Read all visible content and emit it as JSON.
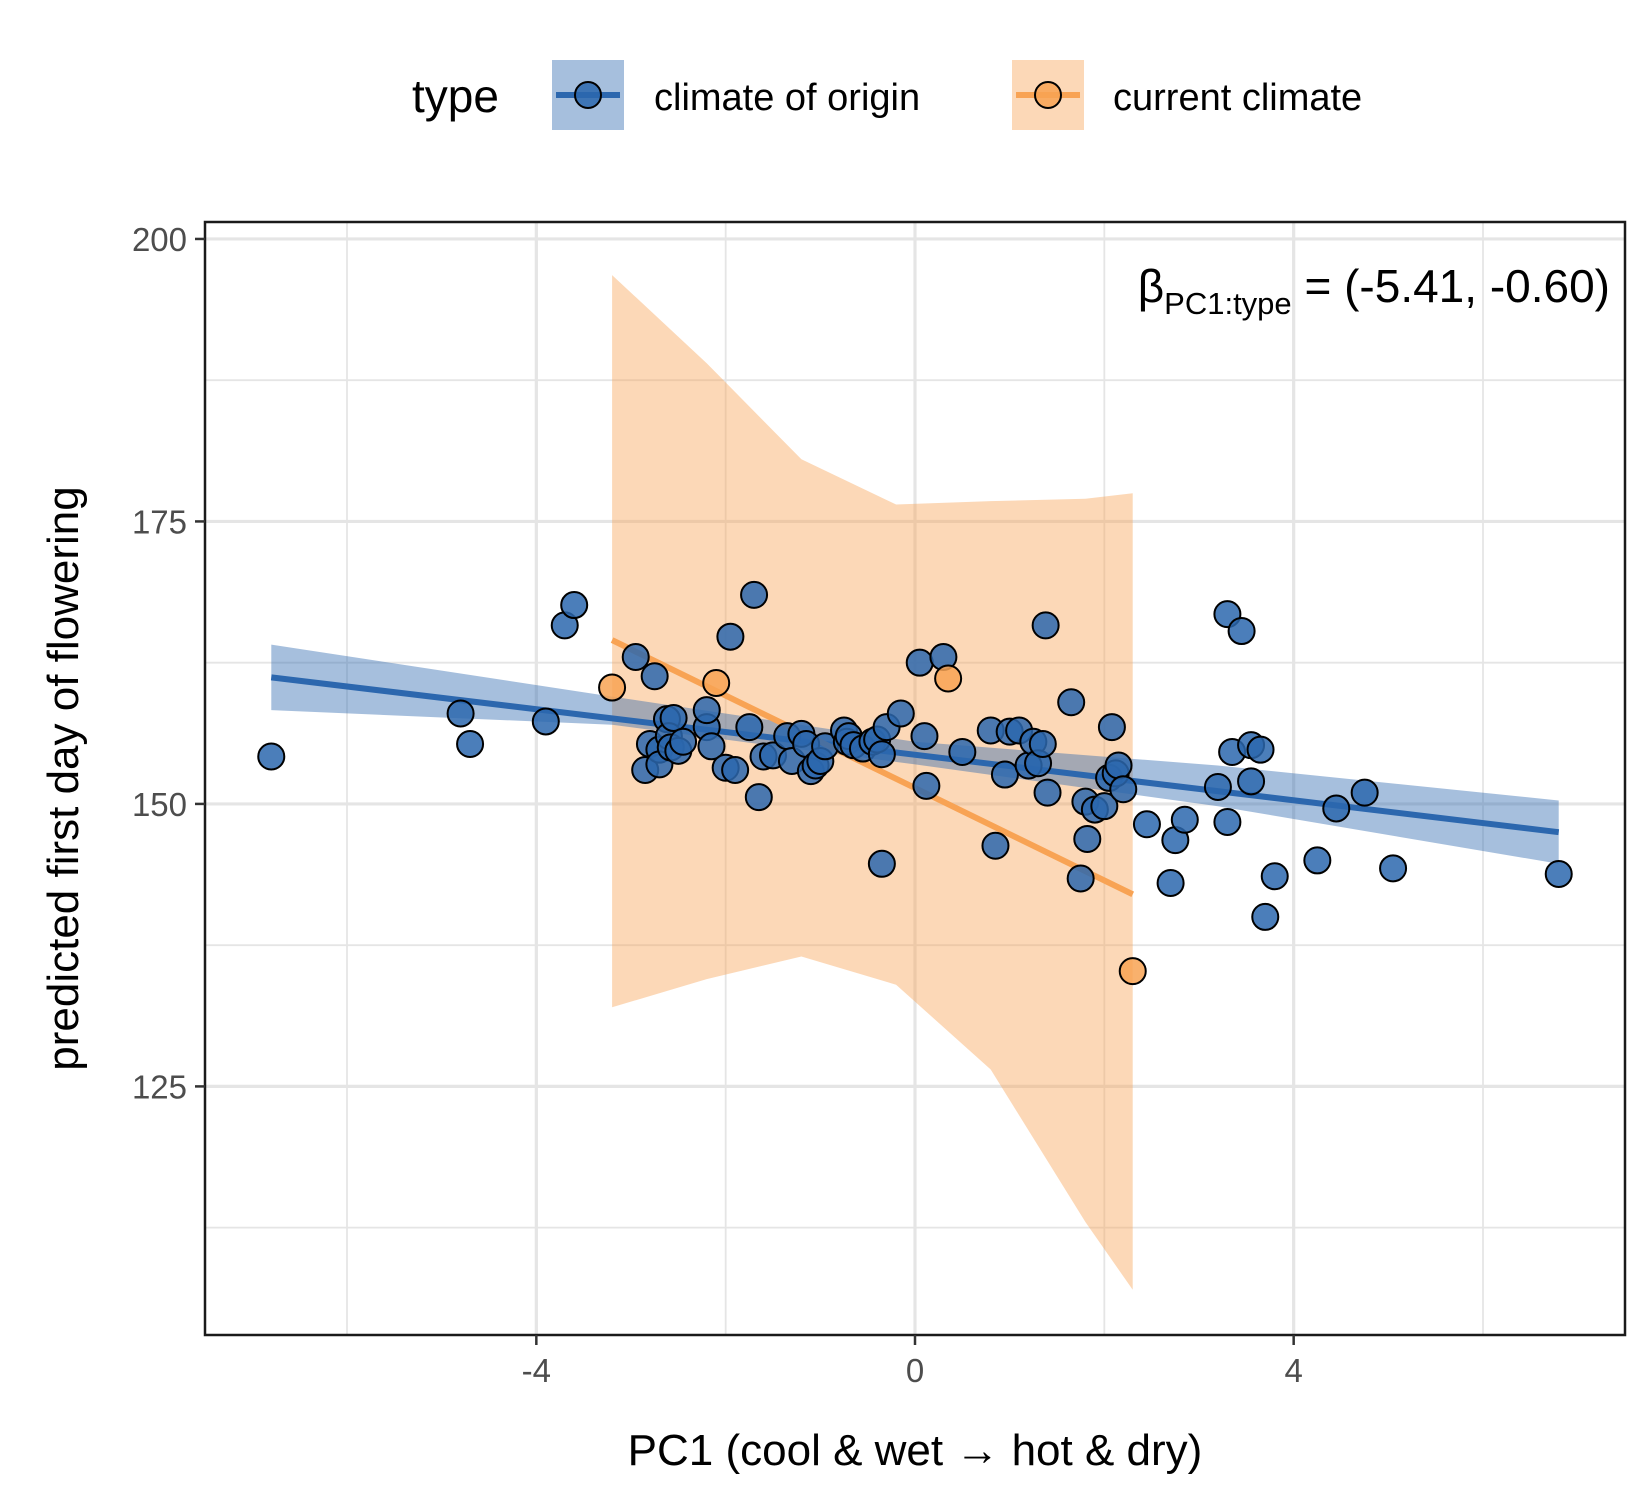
{
  "chart_data": {
    "type": "scatter",
    "xlabel": "PC1 (cool & wet → hot & dry)",
    "ylabel": "predicted first day of flowering",
    "xlim": [
      -7.5,
      7.5
    ],
    "ylim": [
      103,
      201.5
    ],
    "x_ticks": [
      -4,
      0,
      4
    ],
    "x_tick_labels": [
      "-4",
      "0",
      "4"
    ],
    "y_ticks": [
      125,
      150,
      175,
      200
    ],
    "y_tick_labels": [
      "125",
      "150",
      "175",
      "200"
    ],
    "grid": true,
    "legend": {
      "title": "type",
      "position": "top",
      "entries": [
        "climate of origin",
        "current climate"
      ]
    },
    "annotation": {
      "symbol": "β",
      "subscript": "PC1:type",
      "text": " = (-5.41, -0.60)"
    },
    "colors": {
      "climate of origin": "#2c67ae",
      "climate of origin band": "#a9c3de",
      "current climate": "#f8a354",
      "current climate band": "#fbd6b5",
      "grid": "#e5e5e5"
    },
    "series": [
      {
        "name": "climate of origin",
        "points": [
          [
            -6.8,
            154.2
          ],
          [
            -4.8,
            158.0
          ],
          [
            -4.7,
            155.3
          ],
          [
            -3.9,
            157.3
          ],
          [
            -3.7,
            165.8
          ],
          [
            -3.6,
            167.6
          ],
          [
            -2.95,
            163.0
          ],
          [
            -2.85,
            153.0
          ],
          [
            -2.8,
            155.3
          ],
          [
            -2.75,
            161.3
          ],
          [
            -2.7,
            154.8
          ],
          [
            -2.7,
            153.5
          ],
          [
            -2.62,
            157.5
          ],
          [
            -2.6,
            156.0
          ],
          [
            -2.58,
            155.0
          ],
          [
            -2.55,
            157.6
          ],
          [
            -2.5,
            154.7
          ],
          [
            -2.45,
            155.5
          ],
          [
            -2.2,
            156.8
          ],
          [
            -2.2,
            158.3
          ],
          [
            -2.15,
            155.1
          ],
          [
            -2.0,
            153.2
          ],
          [
            -1.95,
            164.8
          ],
          [
            -1.9,
            153.0
          ],
          [
            -1.75,
            156.8
          ],
          [
            -1.7,
            168.5
          ],
          [
            -1.65,
            150.6
          ],
          [
            -1.6,
            154.2
          ],
          [
            -1.5,
            154.3
          ],
          [
            -1.35,
            156.0
          ],
          [
            -1.3,
            153.8
          ],
          [
            -1.2,
            156.2
          ],
          [
            -1.15,
            155.3
          ],
          [
            -1.1,
            152.9
          ],
          [
            -1.05,
            153.4
          ],
          [
            -1.0,
            153.8
          ],
          [
            -0.95,
            155.1
          ],
          [
            -0.75,
            156.5
          ],
          [
            -0.72,
            155.5
          ],
          [
            -0.7,
            156.0
          ],
          [
            -0.65,
            155.2
          ],
          [
            -0.55,
            154.9
          ],
          [
            -0.45,
            155.5
          ],
          [
            -0.4,
            155.7
          ],
          [
            -0.35,
            144.7
          ],
          [
            -0.35,
            154.4
          ],
          [
            -0.3,
            156.8
          ],
          [
            -0.15,
            158.0
          ],
          [
            0.05,
            162.5
          ],
          [
            0.1,
            156.0
          ],
          [
            0.12,
            151.6
          ],
          [
            0.3,
            163.0
          ],
          [
            0.5,
            154.6
          ],
          [
            0.8,
            156.5
          ],
          [
            0.85,
            146.3
          ],
          [
            0.95,
            152.6
          ],
          [
            1.0,
            156.4
          ],
          [
            1.1,
            156.5
          ],
          [
            1.2,
            153.4
          ],
          [
            1.25,
            155.5
          ],
          [
            1.3,
            153.6
          ],
          [
            1.35,
            155.3
          ],
          [
            1.38,
            165.8
          ],
          [
            1.4,
            151.0
          ],
          [
            1.65,
            159.0
          ],
          [
            1.75,
            143.4
          ],
          [
            1.8,
            150.2
          ],
          [
            1.82,
            146.9
          ],
          [
            1.9,
            149.5
          ],
          [
            2.0,
            149.8
          ],
          [
            2.05,
            152.3
          ],
          [
            2.08,
            156.8
          ],
          [
            2.12,
            152.7
          ],
          [
            2.15,
            153.4
          ],
          [
            2.2,
            151.3
          ],
          [
            2.45,
            148.2
          ],
          [
            2.7,
            143.0
          ],
          [
            2.75,
            146.8
          ],
          [
            2.85,
            148.6
          ],
          [
            3.2,
            151.5
          ],
          [
            3.3,
            166.8
          ],
          [
            3.3,
            148.4
          ],
          [
            3.35,
            154.6
          ],
          [
            3.45,
            165.3
          ],
          [
            3.55,
            155.2
          ],
          [
            3.55,
            152.0
          ],
          [
            3.65,
            154.8
          ],
          [
            3.7,
            140.0
          ],
          [
            3.8,
            143.6
          ],
          [
            4.25,
            145.0
          ],
          [
            4.45,
            149.6
          ],
          [
            4.75,
            151.0
          ],
          [
            5.05,
            144.3
          ],
          [
            6.8,
            143.8
          ]
        ],
        "fit": {
          "x": [
            -6.8,
            6.8
          ],
          "y": [
            161.2,
            147.5
          ]
        },
        "band": {
          "x": [
            -6.8,
            -3.2,
            0,
            3.2,
            6.8
          ],
          "lower": [
            158.3,
            157.0,
            153.5,
            149.8,
            144.7
          ],
          "upper": [
            164.1,
            159.5,
            155.5,
            153.4,
            150.3
          ]
        }
      },
      {
        "name": "current climate",
        "points": [
          [
            -3.2,
            160.3
          ],
          [
            -2.1,
            160.7
          ],
          [
            0.35,
            161.1
          ],
          [
            2.3,
            135.2
          ]
        ],
        "fit": {
          "x": [
            -3.2,
            2.3
          ],
          "y": [
            164.5,
            142.0
          ]
        },
        "band": {
          "x": [
            -3.2,
            -2.2,
            -1.2,
            -0.2,
            0.8,
            1.8,
            2.3
          ],
          "lower": [
            132.0,
            134.5,
            136.5,
            134.0,
            126.5,
            113.0,
            107.0
          ],
          "upper": [
            196.8,
            189.0,
            180.5,
            176.5,
            176.8,
            177.0,
            177.5
          ]
        }
      }
    ]
  }
}
